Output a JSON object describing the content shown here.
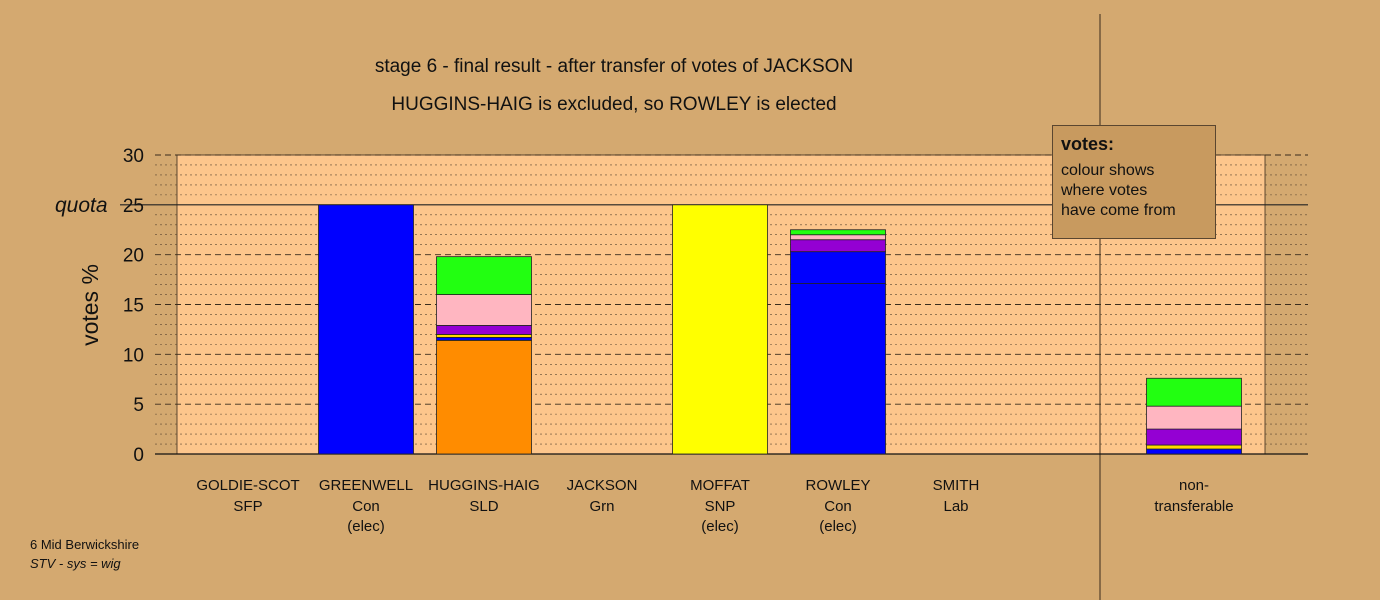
{
  "chart_data": {
    "type": "bar",
    "stacked": true,
    "title": "stage 6 - final result - after transfer of votes of JACKSON",
    "subtitle": "HUGGINS-HAIG is excluded, so ROWLEY is elected",
    "ylabel": "votes %",
    "ylim": [
      0,
      30
    ],
    "yticks": [
      "0",
      "5",
      "10",
      "15",
      "20",
      "25",
      "30"
    ],
    "quota_label": "quota",
    "quota": 25,
    "grid": true,
    "colors": {
      "Con": "#0000ff",
      "SLD": "#ff8c00",
      "SNP": "#ffff00",
      "Grn": "#22ff11",
      "Lab": "#ffb6c1",
      "SFP": "#9400d3",
      "other": "#ffd700"
    },
    "categories": [
      {
        "name": "GOLDIE-SCOT",
        "party": "SFP",
        "note": "",
        "segments": []
      },
      {
        "name": "GREENWELL",
        "party": "Con",
        "note": "(elec)",
        "segments": [
          {
            "color": "#0000ff",
            "value": 25
          }
        ]
      },
      {
        "name": "HUGGINS-HAIG",
        "party": "SLD",
        "note": "",
        "segments": [
          {
            "color": "#ff8c00",
            "value": 11.4
          },
          {
            "color": "#0000ff",
            "value": 0.3
          },
          {
            "color": "#ffd700",
            "value": 0.3
          },
          {
            "color": "#9400d3",
            "value": 0.9
          },
          {
            "color": "#ffb6c1",
            "value": 3.1
          },
          {
            "color": "#22ff11",
            "value": 3.8
          }
        ]
      },
      {
        "name": "JACKSON",
        "party": "Grn",
        "note": "",
        "segments": []
      },
      {
        "name": "MOFFAT",
        "party": "SNP",
        "note": "(elec)",
        "segments": [
          {
            "color": "#ffff00",
            "value": 25
          }
        ]
      },
      {
        "name": "ROWLEY",
        "party": "Con",
        "note": "(elec)",
        "segments": [
          {
            "color": "#0000ff",
            "value": 17.1
          },
          {
            "color": "#0000ff",
            "value": 3.2
          },
          {
            "color": "#9400d3",
            "value": 1.2
          },
          {
            "color": "#ffb6c1",
            "value": 0.5
          },
          {
            "color": "#22ff11",
            "value": 0.5
          }
        ]
      },
      {
        "name": "SMITH",
        "party": "Lab",
        "note": "",
        "segments": []
      }
    ],
    "nontransferable": {
      "label1": "non-",
      "label2": "transferable",
      "segments": [
        {
          "color": "#0000ff",
          "value": 0.5
        },
        {
          "color": "#ffd700",
          "value": 0.4
        },
        {
          "color": "#9400d3",
          "value": 1.6
        },
        {
          "color": "#ffb6c1",
          "value": 2.3
        },
        {
          "color": "#22ff11",
          "value": 2.8
        }
      ]
    }
  },
  "legend": {
    "title": "votes:",
    "line1": "colour shows",
    "line2": "where votes",
    "line3": "have come from"
  },
  "footer": {
    "line1": "6 Mid Berwickshire",
    "line2": "STV - sys = wig"
  }
}
